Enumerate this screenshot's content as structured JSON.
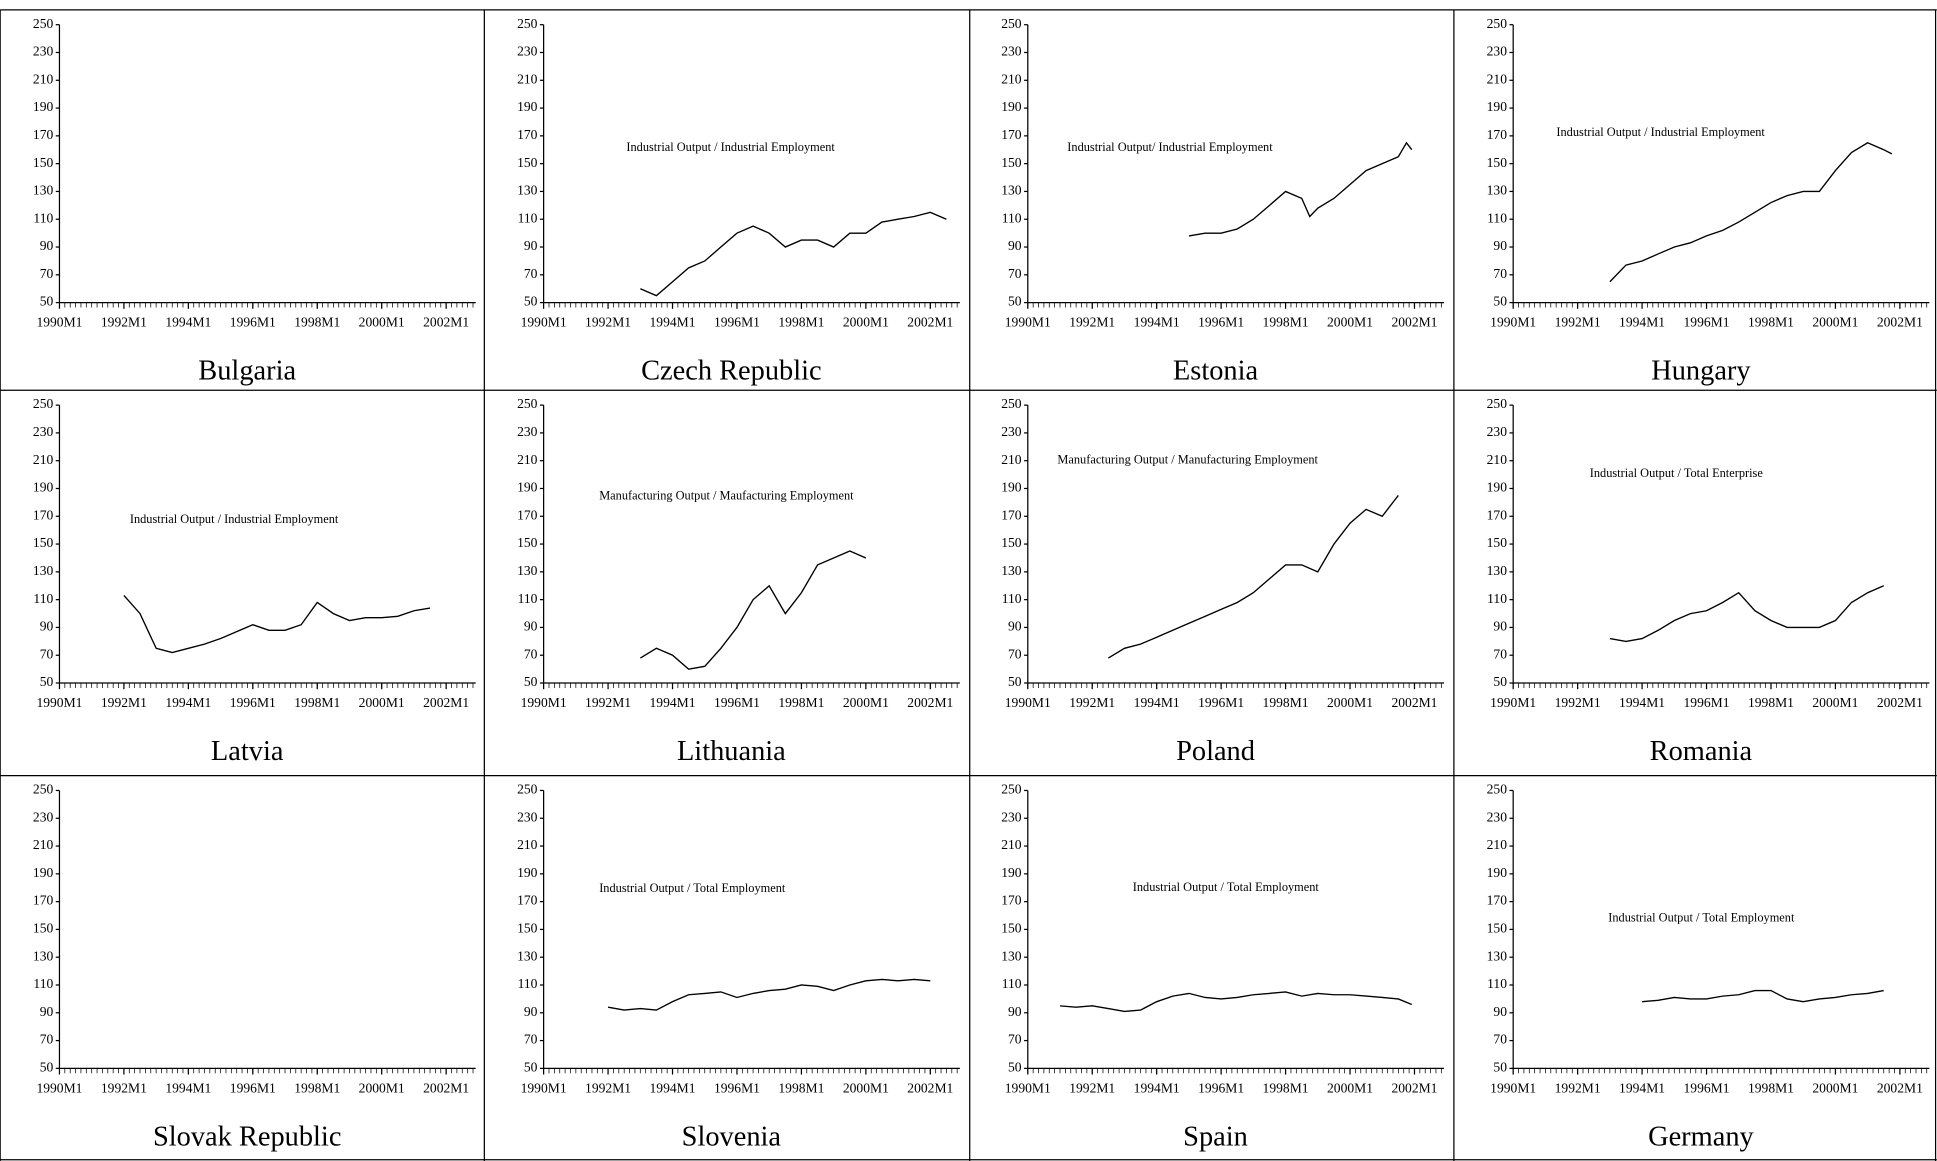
{
  "chart_data": [
    {
      "type": "line",
      "title": "Bulgaria",
      "xlim": [
        "1990M1",
        "2002M12"
      ],
      "ylim": [
        50,
        250
      ],
      "xticks": [
        "1990M1",
        "1992M1",
        "1994M1",
        "1996M1",
        "1998M1",
        "2000M1",
        "2002M1"
      ],
      "yticks": [
        50,
        70,
        90,
        110,
        130,
        150,
        170,
        190,
        210,
        230,
        250
      ],
      "color": "#000000"
    },
    {
      "type": "line",
      "title": "Czech Republic",
      "annotation": "Industrial Output / Industrial Employment",
      "xlim": [
        "1990M1",
        "2002M12"
      ],
      "ylim": [
        50,
        250
      ],
      "xticks": [
        "1990M1",
        "1992M1",
        "1994M1",
        "1996M1",
        "1998M1",
        "2000M1",
        "2002M1"
      ],
      "yticks": [
        50,
        70,
        90,
        110,
        130,
        150,
        170,
        190,
        210,
        230,
        250
      ],
      "color": "#000000",
      "x": [
        "1993M1",
        "1993M7",
        "1994M1",
        "1994M7",
        "1995M1",
        "1995M7",
        "1996M1",
        "1996M7",
        "1997M1",
        "1997M7",
        "1998M1",
        "1998M7",
        "1999M1",
        "1999M7",
        "2000M1",
        "2000M7",
        "2001M1",
        "2001M7",
        "2002M1",
        "2002M7"
      ],
      "values": [
        60,
        55,
        65,
        75,
        80,
        90,
        100,
        105,
        100,
        90,
        95,
        95,
        90,
        100,
        100,
        108,
        110,
        112,
        115,
        110
      ]
    },
    {
      "type": "line",
      "title": "Estonia",
      "annotation": "Industrial Output/ Industrial Employment",
      "xlim": [
        "1990M1",
        "2002M12"
      ],
      "ylim": [
        50,
        250
      ],
      "xticks": [
        "1990M1",
        "1992M1",
        "1994M1",
        "1996M1",
        "1998M1",
        "2000M1",
        "2002M1"
      ],
      "yticks": [
        50,
        70,
        90,
        110,
        130,
        150,
        170,
        190,
        210,
        230,
        250
      ],
      "color": "#000000",
      "x": [
        "1995M1",
        "1995M7",
        "1996M1",
        "1996M7",
        "1997M1",
        "1997M7",
        "1998M1",
        "1998M7",
        "1998M10",
        "1999M1",
        "1999M7",
        "2000M1",
        "2000M7",
        "2001M1",
        "2001M7",
        "2001M10",
        "2001M12"
      ],
      "values": [
        98,
        100,
        100,
        103,
        110,
        120,
        130,
        125,
        112,
        118,
        125,
        135,
        145,
        150,
        155,
        165,
        160
      ]
    },
    {
      "type": "line",
      "title": "Hungary",
      "annotation": "Industrial Output / Industrial Employment",
      "xlim": [
        "1990M1",
        "2002M12"
      ],
      "ylim": [
        50,
        250
      ],
      "xticks": [
        "1990M1",
        "1992M1",
        "1994M1",
        "1996M1",
        "1998M1",
        "2000M1",
        "2002M1"
      ],
      "yticks": [
        50,
        70,
        90,
        110,
        130,
        150,
        170,
        190,
        210,
        230,
        250
      ],
      "color": "#000000",
      "x": [
        "1993M1",
        "1993M7",
        "1994M1",
        "1994M7",
        "1995M1",
        "1995M7",
        "1996M1",
        "1996M7",
        "1997M1",
        "1997M7",
        "1998M1",
        "1998M7",
        "1999M1",
        "1999M7",
        "2000M1",
        "2000M7",
        "2001M1",
        "2001M7",
        "2001M10"
      ],
      "values": [
        65,
        77,
        80,
        85,
        90,
        93,
        98,
        102,
        108,
        115,
        122,
        127,
        130,
        130,
        145,
        158,
        165,
        160,
        157
      ]
    },
    {
      "type": "line",
      "title": "Latvia",
      "annotation": "Industrial Output / Industrial Employment",
      "xlim": [
        "1990M1",
        "2002M12"
      ],
      "ylim": [
        50,
        250
      ],
      "xticks": [
        "1990M1",
        "1992M1",
        "1994M1",
        "1996M1",
        "1998M1",
        "2000M1",
        "2002M1"
      ],
      "yticks": [
        50,
        70,
        90,
        110,
        130,
        150,
        170,
        190,
        210,
        230,
        250
      ],
      "color": "#000000",
      "x": [
        "1992M1",
        "1992M7",
        "1993M1",
        "1993M7",
        "1994M1",
        "1994M7",
        "1995M1",
        "1995M7",
        "1996M1",
        "1996M7",
        "1997M1",
        "1997M7",
        "1998M1",
        "1998M7",
        "1999M1",
        "1999M7",
        "2000M1",
        "2000M7",
        "2001M1",
        "2001M7"
      ],
      "values": [
        113,
        100,
        75,
        72,
        75,
        78,
        82,
        87,
        92,
        88,
        88,
        92,
        108,
        100,
        95,
        97,
        97,
        98,
        102,
        104
      ]
    },
    {
      "type": "line",
      "title": "Lithuania",
      "annotation": "Manufacturing Output / Maufacturing Employment",
      "xlim": [
        "1990M1",
        "2002M12"
      ],
      "ylim": [
        50,
        250
      ],
      "xticks": [
        "1990M1",
        "1992M1",
        "1994M1",
        "1996M1",
        "1998M1",
        "2000M1",
        "2002M1"
      ],
      "yticks": [
        50,
        70,
        90,
        110,
        130,
        150,
        170,
        190,
        210,
        230,
        250
      ],
      "color": "#000000",
      "x": [
        "1993M1",
        "1993M7",
        "1994M1",
        "1994M7",
        "1995M1",
        "1995M7",
        "1996M1",
        "1996M7",
        "1997M1",
        "1997M7",
        "1998M1",
        "1998M7",
        "1999M1",
        "1999M7",
        "2000M1"
      ],
      "values": [
        68,
        75,
        70,
        60,
        62,
        75,
        90,
        110,
        120,
        100,
        115,
        135,
        140,
        145,
        140
      ]
    },
    {
      "type": "line",
      "title": "Poland",
      "annotation": "Manufacturing Output / Manufacturing Employment",
      "xlim": [
        "1990M1",
        "2002M12"
      ],
      "ylim": [
        50,
        250
      ],
      "xticks": [
        "1990M1",
        "1992M1",
        "1994M1",
        "1996M1",
        "1998M1",
        "2000M1",
        "2002M1"
      ],
      "yticks": [
        50,
        70,
        90,
        110,
        130,
        150,
        170,
        190,
        210,
        230,
        250
      ],
      "color": "#000000",
      "x": [
        "1992M7",
        "1993M1",
        "1993M7",
        "1994M1",
        "1994M7",
        "1995M1",
        "1995M7",
        "1996M1",
        "1996M7",
        "1997M1",
        "1997M7",
        "1998M1",
        "1998M7",
        "1999M1",
        "1999M7",
        "2000M1",
        "2000M7",
        "2001M1",
        "2001M7"
      ],
      "values": [
        68,
        75,
        78,
        83,
        88,
        93,
        98,
        103,
        108,
        115,
        125,
        135,
        135,
        130,
        150,
        165,
        175,
        170,
        185
      ]
    },
    {
      "type": "line",
      "title": "Romania",
      "annotation": "Industrial Output / Total Enterprise",
      "xlim": [
        "1990M1",
        "2002M12"
      ],
      "ylim": [
        50,
        250
      ],
      "xticks": [
        "1990M1",
        "1992M1",
        "1994M1",
        "1996M1",
        "1998M1",
        "2000M1",
        "2002M1"
      ],
      "yticks": [
        50,
        70,
        90,
        110,
        130,
        150,
        170,
        190,
        210,
        230,
        250
      ],
      "color": "#000000",
      "x": [
        "1993M1",
        "1993M7",
        "1994M1",
        "1994M7",
        "1995M1",
        "1995M7",
        "1996M1",
        "1996M7",
        "1997M1",
        "1997M7",
        "1998M1",
        "1998M7",
        "1999M1",
        "1999M7",
        "2000M1",
        "2000M7",
        "2001M1",
        "2001M7"
      ],
      "values": [
        82,
        80,
        82,
        88,
        95,
        100,
        102,
        108,
        115,
        102,
        95,
        90,
        90,
        90,
        95,
        108,
        115,
        120
      ]
    },
    {
      "type": "line",
      "title": "Slovak Republic",
      "xlim": [
        "1990M1",
        "2002M12"
      ],
      "ylim": [
        50,
        250
      ],
      "xticks": [
        "1990M1",
        "1992M1",
        "1994M1",
        "1996M1",
        "1998M1",
        "2000M1",
        "2002M1"
      ],
      "yticks": [
        50,
        70,
        90,
        110,
        130,
        150,
        170,
        190,
        210,
        230,
        250
      ],
      "color": "#000000"
    },
    {
      "type": "line",
      "title": "Slovenia",
      "annotation": "Industrial Output / Total Employment",
      "xlim": [
        "1990M1",
        "2002M12"
      ],
      "ylim": [
        50,
        250
      ],
      "xticks": [
        "1990M1",
        "1992M1",
        "1994M1",
        "1996M1",
        "1998M1",
        "2000M1",
        "2002M1"
      ],
      "yticks": [
        50,
        70,
        90,
        110,
        130,
        150,
        170,
        190,
        210,
        230,
        250
      ],
      "color": "#000000",
      "x": [
        "1992M1",
        "1992M7",
        "1993M1",
        "1993M7",
        "1994M1",
        "1994M7",
        "1995M1",
        "1995M7",
        "1996M1",
        "1996M7",
        "1997M1",
        "1997M7",
        "1998M1",
        "1998M7",
        "1999M1",
        "1999M7",
        "2000M1",
        "2000M7",
        "2001M1",
        "2001M7",
        "2002M1"
      ],
      "values": [
        94,
        92,
        93,
        92,
        98,
        103,
        104,
        105,
        101,
        104,
        106,
        107,
        110,
        109,
        106,
        110,
        113,
        114,
        113,
        114,
        113
      ]
    },
    {
      "type": "line",
      "title": "Spain",
      "annotation": "Industrial Output / Total Employment",
      "xlim": [
        "1990M1",
        "2002M12"
      ],
      "ylim": [
        50,
        250
      ],
      "xticks": [
        "1990M1",
        "1992M1",
        "1994M1",
        "1996M1",
        "1998M1",
        "2000M1",
        "2002M1"
      ],
      "yticks": [
        50,
        70,
        90,
        110,
        130,
        150,
        170,
        190,
        210,
        230,
        250
      ],
      "color": "#000000",
      "x": [
        "1991M1",
        "1991M7",
        "1992M1",
        "1992M7",
        "1993M1",
        "1993M7",
        "1994M1",
        "1994M7",
        "1995M1",
        "1995M7",
        "1996M1",
        "1996M7",
        "1997M1",
        "1997M7",
        "1998M1",
        "1998M7",
        "1999M1",
        "1999M7",
        "2000M1",
        "2000M7",
        "2001M1",
        "2001M7",
        "2001M12"
      ],
      "values": [
        95,
        94,
        95,
        93,
        91,
        92,
        98,
        102,
        104,
        101,
        100,
        101,
        103,
        104,
        105,
        102,
        104,
        103,
        103,
        102,
        101,
        100,
        96
      ]
    },
    {
      "type": "line",
      "title": "Germany",
      "annotation": "Industrial Output / Total Employment",
      "xlim": [
        "1990M1",
        "2002M12"
      ],
      "ylim": [
        50,
        250
      ],
      "xticks": [
        "1990M1",
        "1992M1",
        "1994M1",
        "1996M1",
        "1998M1",
        "2000M1",
        "2002M1"
      ],
      "yticks": [
        50,
        70,
        90,
        110,
        130,
        150,
        170,
        190,
        210,
        230,
        250
      ],
      "color": "#000000",
      "x": [
        "1994M1",
        "1994M7",
        "1995M1",
        "1995M7",
        "1996M1",
        "1996M7",
        "1997M1",
        "1997M7",
        "1998M1",
        "1998M7",
        "1999M1",
        "1999M7",
        "2000M1",
        "2000M7",
        "2001M1",
        "2001M7"
      ],
      "values": [
        98,
        99,
        101,
        100,
        100,
        102,
        103,
        106,
        106,
        100,
        98,
        100,
        101,
        103,
        104,
        106
      ]
    }
  ]
}
